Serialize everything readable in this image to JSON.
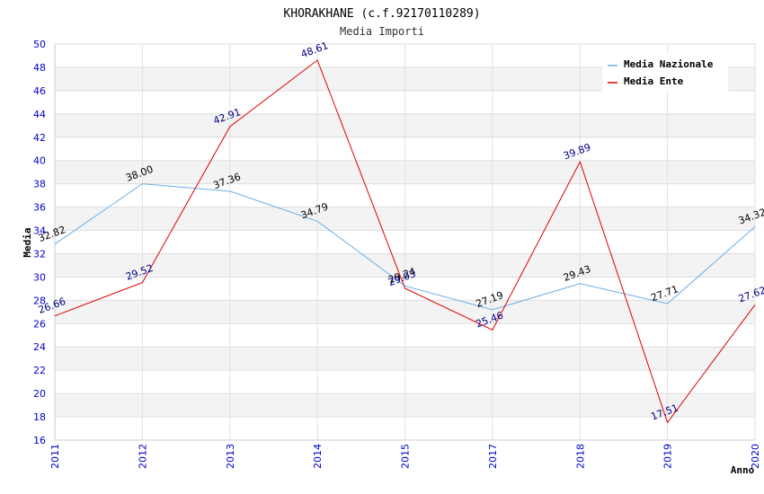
{
  "chart_data": {
    "type": "line",
    "title": "KHORAKHANE (c.f.92170110289)",
    "subtitle": "Media Importi",
    "xlabel": "Anno",
    "ylabel": "Media",
    "ylim": [
      16,
      50
    ],
    "ytick_step": 2,
    "categories": [
      "2011",
      "2012",
      "2013",
      "2014",
      "2015",
      "2017",
      "2018",
      "2019",
      "2020"
    ],
    "grid": true,
    "legend_position": "top-right",
    "series": [
      {
        "name": "Media Nazionale",
        "color": "#6aaee8",
        "label_color": "#000000",
        "values": [
          32.82,
          38.0,
          37.36,
          34.79,
          29.24,
          27.19,
          29.43,
          27.71,
          34.32
        ],
        "labels": [
          "32.82",
          "38.00",
          "37.36",
          "34.79",
          "29.24",
          "27.19",
          "29.43",
          "27.71",
          "34.32"
        ]
      },
      {
        "name": "Media Ente",
        "color": "#dd0000",
        "label_color": "#000080",
        "values": [
          26.66,
          29.52,
          42.91,
          48.61,
          29.03,
          25.46,
          39.89,
          17.51,
          27.62
        ],
        "labels": [
          "26.66",
          "29.52",
          "42.91",
          "48.61",
          "29.03",
          "25.46",
          "39.89",
          "17.51",
          "27.62"
        ]
      }
    ]
  }
}
